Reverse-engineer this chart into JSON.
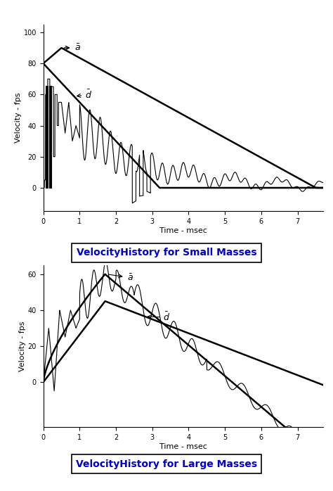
{
  "fig_width": 4.74,
  "fig_height": 6.98,
  "dpi": 100,
  "bg_color": "#ffffff",
  "plot1": {
    "title": "VelocityHistory for Small Masses",
    "xlabel": "Time - msec",
    "ylabel": "Velocity - fps",
    "xlim": [
      0,
      7.7
    ],
    "ylim": [
      -15,
      105
    ],
    "yticks": [
      0,
      20,
      40,
      60,
      80,
      100
    ],
    "xticks": [
      0,
      1,
      2,
      3,
      4,
      5,
      6,
      7
    ]
  },
  "plot2": {
    "title": "VelocityHistory for Large Masses",
    "xlabel": "Time - msec",
    "ylabel": "Velocity - fps",
    "xlim": [
      0,
      7.7
    ],
    "ylim": [
      -25,
      65
    ],
    "yticks": [
      0,
      20,
      40,
      60
    ],
    "xticks": [
      0,
      1,
      2,
      3,
      4,
      5,
      6,
      7
    ]
  },
  "title_color": "#0000cc",
  "line_color": "#000000"
}
